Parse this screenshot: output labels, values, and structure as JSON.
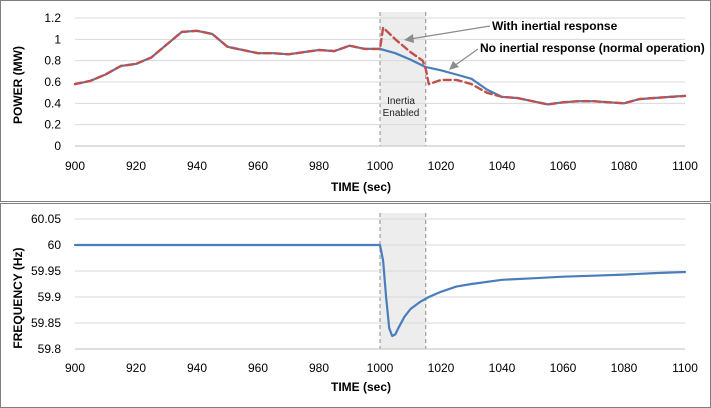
{
  "chart_data": [
    {
      "type": "line",
      "xlabel": "TIME (sec)",
      "ylabel": "POWER (MW)",
      "xlim": [
        900,
        1100
      ],
      "ylim": [
        0,
        1.2
      ],
      "xticks": [
        "900",
        "920",
        "940",
        "960",
        "980",
        "1000",
        "1020",
        "1040",
        "1060",
        "1080",
        "1100"
      ],
      "yticks": [
        "0",
        "0.2",
        "0.4",
        "0.6",
        "0.8",
        "1",
        "1.2"
      ],
      "grid": true,
      "shaded_region": {
        "x": [
          1000,
          1015
        ],
        "label_lines": [
          "Inertia",
          "Enabled"
        ]
      },
      "annotations": [
        "With inertial response",
        "No inertial response (normal operation)"
      ],
      "series": [
        {
          "style": "solid",
          "color": "#4a7ebb",
          "x": [
            900,
            905,
            910,
            915,
            920,
            925,
            930,
            935,
            940,
            945,
            950,
            955,
            960,
            965,
            970,
            975,
            980,
            985,
            990,
            995,
            1000,
            1005,
            1010,
            1015,
            1020,
            1025,
            1030,
            1035,
            1040,
            1045,
            1050,
            1055,
            1060,
            1065,
            1070,
            1075,
            1080,
            1085,
            1090,
            1095,
            1100
          ],
          "y": [
            0.58,
            0.61,
            0.67,
            0.75,
            0.77,
            0.83,
            0.95,
            1.07,
            1.08,
            1.05,
            0.93,
            0.9,
            0.87,
            0.87,
            0.86,
            0.88,
            0.9,
            0.89,
            0.94,
            0.91,
            0.91,
            0.87,
            0.81,
            0.74,
            0.71,
            0.67,
            0.63,
            0.53,
            0.46,
            0.45,
            0.42,
            0.39,
            0.41,
            0.42,
            0.42,
            0.41,
            0.4,
            0.44,
            0.45,
            0.46,
            0.47
          ]
        },
        {
          "style": "dashed",
          "color": "#c0504d",
          "x": [
            900,
            905,
            910,
            915,
            920,
            925,
            930,
            935,
            940,
            945,
            950,
            955,
            960,
            965,
            970,
            975,
            980,
            985,
            990,
            995,
            1000,
            1001,
            1005,
            1010,
            1014,
            1015,
            1016,
            1020,
            1025,
            1030,
            1035,
            1040,
            1045,
            1050,
            1055,
            1060,
            1065,
            1070,
            1075,
            1080,
            1085,
            1090,
            1095,
            1100
          ],
          "y": [
            0.58,
            0.61,
            0.67,
            0.75,
            0.77,
            0.83,
            0.95,
            1.07,
            1.08,
            1.05,
            0.93,
            0.9,
            0.87,
            0.87,
            0.86,
            0.88,
            0.9,
            0.89,
            0.94,
            0.91,
            0.91,
            1.11,
            1.0,
            0.88,
            0.8,
            0.72,
            0.58,
            0.62,
            0.62,
            0.58,
            0.5,
            0.46,
            0.45,
            0.42,
            0.39,
            0.41,
            0.42,
            0.42,
            0.41,
            0.4,
            0.44,
            0.45,
            0.46,
            0.47
          ]
        }
      ]
    },
    {
      "type": "line",
      "xlabel": "TIME (sec)",
      "ylabel": "FREQUENCY (Hz)",
      "xlim": [
        900,
        1100
      ],
      "ylim": [
        59.8,
        60.05
      ],
      "xticks": [
        "900",
        "920",
        "940",
        "960",
        "980",
        "1000",
        "1020",
        "1040",
        "1060",
        "1080",
        "1100"
      ],
      "yticks": [
        "59.8",
        "59.85",
        "59.9",
        "59.95",
        "60",
        "60.05"
      ],
      "grid": true,
      "shaded_region": {
        "x": [
          1000,
          1015
        ]
      },
      "series": [
        {
          "style": "solid",
          "color": "#4a7ebb",
          "x": [
            900,
            1000,
            1001,
            1002,
            1003,
            1004,
            1005,
            1006,
            1008,
            1010,
            1013,
            1016,
            1020,
            1025,
            1030,
            1040,
            1050,
            1060,
            1070,
            1080,
            1090,
            1100
          ],
          "y": [
            60.0,
            60.0,
            59.97,
            59.9,
            59.84,
            59.825,
            59.828,
            59.84,
            59.862,
            59.877,
            59.89,
            59.9,
            59.91,
            59.92,
            59.925,
            59.933,
            59.936,
            59.939,
            59.941,
            59.943,
            59.946,
            59.948
          ]
        }
      ]
    }
  ]
}
